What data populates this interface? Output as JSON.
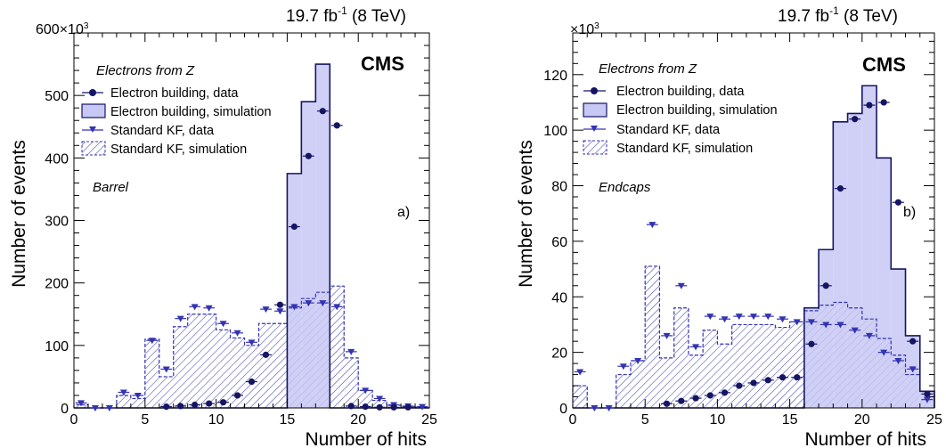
{
  "chart_data": [
    {
      "type": "histogram",
      "panel_label": "a)",
      "region": "Barrel",
      "cms_label": "CMS",
      "lumi": {
        "prefix": "19.7 fb",
        "sup": "-1",
        "suffix": " (8 TeV)"
      },
      "xlabel": "Number of hits",
      "ylabel": "Number of events",
      "y_multiplier": "×10",
      "y_multiplier_exp": "3",
      "xlim": [
        0,
        25
      ],
      "ylim": [
        0,
        600
      ],
      "xticks": [
        "0",
        "5",
        "10",
        "15",
        "20",
        "25"
      ],
      "yticks": [
        "0",
        "100",
        "200",
        "300",
        "400",
        "500",
        "600"
      ],
      "legend_header": "Electrons from Z",
      "series": [
        {
          "name": "Electron building, data",
          "marker": "circle",
          "color": "#151563",
          "values": [
            0,
            0,
            0,
            0,
            0,
            0,
            2,
            3,
            5,
            7,
            9,
            20,
            42,
            85,
            165,
            290,
            403,
            475,
            452,
            3,
            2,
            1,
            1,
            1,
            0
          ]
        },
        {
          "name": "Electron building, simulation",
          "style": "filled",
          "color": "#c8c8f4",
          "values": [
            0,
            0,
            0,
            0,
            0,
            0,
            0,
            0,
            0,
            0,
            0,
            0,
            0,
            0,
            0,
            375,
            490,
            550,
            0,
            0,
            0,
            0,
            0,
            0,
            0
          ]
        },
        {
          "name": "Standard KF, data",
          "marker": "triangle-down",
          "color": "#3333b3",
          "values": [
            8,
            0,
            0,
            25,
            20,
            108,
            62,
            143,
            162,
            160,
            135,
            120,
            105,
            158,
            155,
            162,
            168,
            168,
            162,
            90,
            28,
            15,
            5,
            3,
            2
          ]
        },
        {
          "name": "Standard KF, simulation",
          "style": "hatched",
          "color": "#3333b3",
          "values": [
            5,
            0,
            0,
            20,
            15,
            110,
            50,
            130,
            150,
            150,
            125,
            112,
            100,
            135,
            135,
            160,
            175,
            185,
            195,
            80,
            28,
            12,
            4,
            2,
            1
          ]
        }
      ]
    },
    {
      "type": "histogram",
      "panel_label": "b)",
      "region": "Endcaps",
      "cms_label": "CMS",
      "lumi": {
        "prefix": "19.7 fb",
        "sup": "-1",
        "suffix": " (8 TeV)"
      },
      "xlabel": "Number of hits",
      "ylabel": "Number of events",
      "y_multiplier": "×10",
      "y_multiplier_exp": "3",
      "xlim": [
        0,
        25
      ],
      "ylim": [
        0,
        135
      ],
      "xticks": [
        "0",
        "5",
        "10",
        "15",
        "20",
        "25"
      ],
      "yticks": [
        "0",
        "20",
        "40",
        "60",
        "80",
        "100",
        "120"
      ],
      "legend_header": "Electrons from Z",
      "series": [
        {
          "name": "Electron building, data",
          "marker": "circle",
          "color": "#151563",
          "values": [
            0,
            0,
            0,
            0,
            0,
            0,
            1.5,
            2.5,
            3.5,
            4.5,
            5.5,
            8,
            9,
            10,
            11,
            11,
            23,
            44,
            79,
            104,
            109,
            110,
            74,
            24,
            5
          ]
        },
        {
          "name": "Electron building, simulation",
          "style": "filled",
          "color": "#c8c8f4",
          "values": [
            0,
            0,
            0,
            0,
            0,
            0,
            0,
            0,
            0,
            0,
            0,
            0,
            0,
            0,
            0,
            0,
            36,
            57,
            103,
            106,
            116,
            90,
            50,
            26,
            6
          ]
        },
        {
          "name": "Standard KF, data",
          "marker": "triangle-down",
          "color": "#3333b3",
          "values": [
            13,
            0,
            0,
            15,
            17,
            66,
            26,
            44,
            22,
            33,
            32,
            33,
            33,
            33,
            32,
            31,
            31,
            30,
            30,
            28,
            26,
            20,
            17,
            14,
            3
          ]
        },
        {
          "name": "Standard KF, simulation",
          "style": "hatched",
          "color": "#3333b3",
          "values": [
            8,
            0,
            0,
            12,
            17,
            51,
            18,
            36,
            19,
            28,
            23,
            30,
            30,
            30,
            29,
            31,
            35,
            37,
            38,
            36,
            32,
            25,
            19,
            12,
            6
          ]
        }
      ]
    }
  ]
}
